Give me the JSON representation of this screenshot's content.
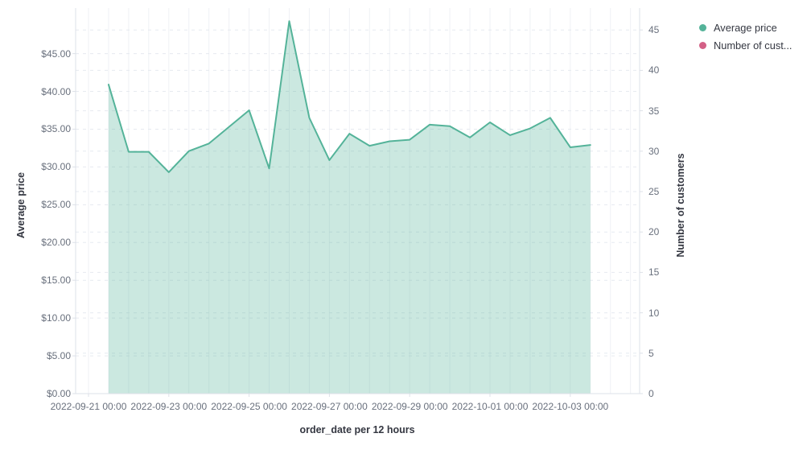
{
  "colors": {
    "series_green": "#54B399",
    "series_green_fill_opacity": 0.3,
    "series_pink": "#D36086",
    "tick_label_text": "#69707D",
    "axis_title_text": "#343741",
    "grid_dashed": "#E6EAF0",
    "grid_vertical": "#EFF1F5",
    "axis_line": "#DDE1E8",
    "background": "#FFFFFF"
  },
  "chart": {
    "legend": {
      "items": [
        {
          "label": "Average price",
          "color": "#54B399"
        },
        {
          "label": "Number of cust...",
          "color": "#D36086"
        }
      ]
    },
    "axes": {
      "left": {
        "title": "Average price",
        "ticks": [
          "$0.00",
          "$5.00",
          "$10.00",
          "$15.00",
          "$20.00",
          "$25.00",
          "$30.00",
          "$35.00",
          "$40.00",
          "$45.00"
        ]
      },
      "right": {
        "title": "Number of customers",
        "ticks": [
          "0",
          "5",
          "10",
          "15",
          "20",
          "25",
          "30",
          "35",
          "40",
          "45"
        ]
      },
      "bottom": {
        "title": "order_date per 12 hours",
        "ticks": [
          "2022-09-21 00:00",
          "2022-09-23 00:00",
          "2022-09-25 00:00",
          "2022-09-27 00:00",
          "2022-09-29 00:00",
          "2022-10-01 00:00",
          "2022-10-03 00:00"
        ]
      }
    }
  },
  "chart_data": {
    "type": "area",
    "title": "",
    "xlabel": "order_date per 12 hours",
    "x_bucket_interval": "12 hours",
    "ylabel_left": "Average price",
    "ylabel_right": "Number of customers",
    "y_left_range": [
      0,
      45
    ],
    "y_right_range": [
      0,
      45
    ],
    "y_tick_step": 5,
    "grid": {
      "horizontal": "dashed",
      "vertical": "solid"
    },
    "legend_position": "top-right",
    "x": [
      "2022-09-21 12:00",
      "2022-09-22 00:00",
      "2022-09-22 12:00",
      "2022-09-23 00:00",
      "2022-09-23 12:00",
      "2022-09-24 00:00",
      "2022-09-24 12:00",
      "2022-09-25 00:00",
      "2022-09-25 12:00",
      "2022-09-26 00:00",
      "2022-09-26 12:00",
      "2022-09-27 00:00",
      "2022-09-27 12:00",
      "2022-09-28 00:00",
      "2022-09-28 12:00",
      "2022-09-29 00:00",
      "2022-09-29 12:00",
      "2022-09-30 00:00",
      "2022-09-30 12:00",
      "2022-10-01 00:00",
      "2022-10-01 12:00",
      "2022-10-02 00:00",
      "2022-10-02 12:00",
      "2022-10-03 00:00",
      "2022-10-03 12:00"
    ],
    "series": [
      {
        "name": "Average price",
        "y_axis": "left",
        "color": "#54B399",
        "style": "area",
        "values": [
          40.9,
          32.0,
          32.0,
          29.3,
          32.1,
          33.1,
          35.3,
          37.5,
          29.8,
          49.3,
          36.5,
          30.9,
          34.4,
          32.8,
          33.4,
          33.6,
          35.6,
          35.4,
          33.9,
          35.9,
          34.2,
          35.1,
          36.5,
          32.6,
          32.9
        ]
      },
      {
        "name": "Number of cust...",
        "y_axis": "right",
        "color": "#D36086",
        "style": "none-visible",
        "values": []
      }
    ]
  }
}
